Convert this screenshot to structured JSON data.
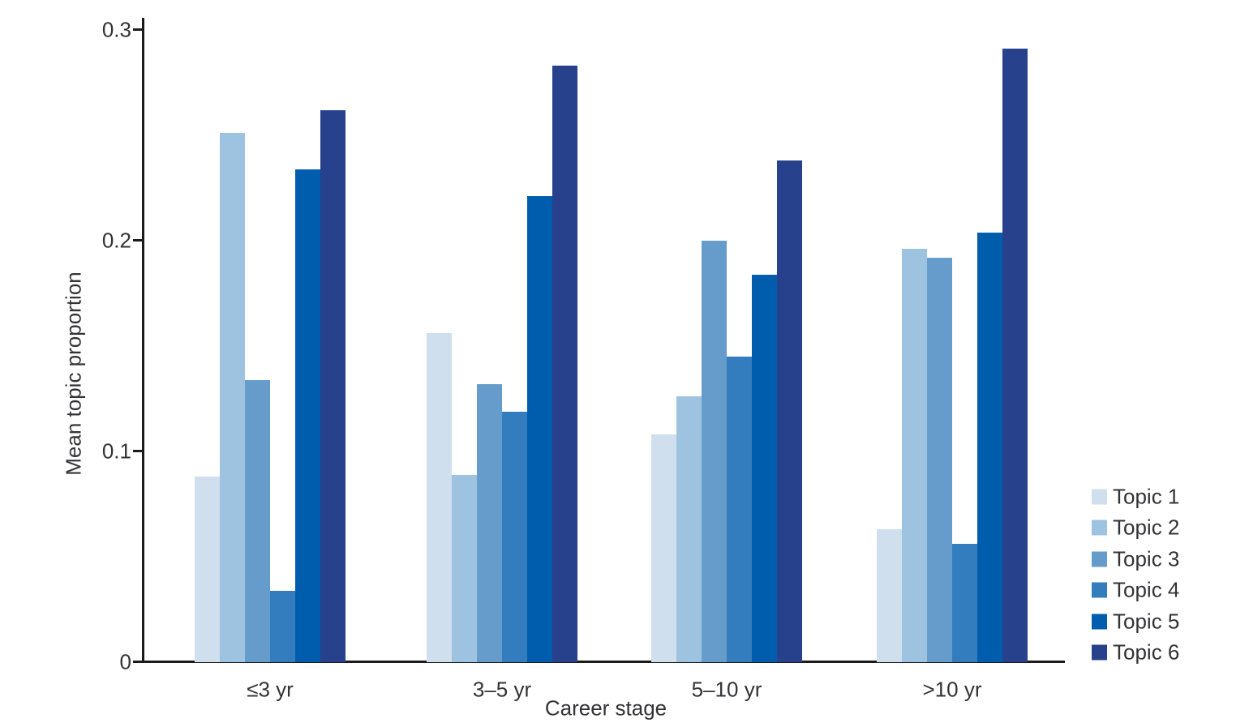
{
  "chart_data": {
    "type": "bar",
    "title": "",
    "xlabel": "Career stage",
    "ylabel": "Mean topic proportion",
    "categories": [
      "≤3 yr",
      "3–5 yr",
      "5–10 yr",
      ">10 yr"
    ],
    "series": [
      {
        "name": "Topic 1",
        "color": "#cfdfed",
        "values": [
          0.088,
          0.156,
          0.108,
          0.063
        ]
      },
      {
        "name": "Topic 2",
        "color": "#9ec3e0",
        "values": [
          0.251,
          0.089,
          0.126,
          0.196
        ]
      },
      {
        "name": "Topic 3",
        "color": "#669ccc",
        "values": [
          0.134,
          0.132,
          0.2,
          0.192
        ]
      },
      {
        "name": "Topic 4",
        "color": "#337dbf",
        "values": [
          0.034,
          0.119,
          0.145,
          0.056
        ]
      },
      {
        "name": "Topic 5",
        "color": "#005dad",
        "values": [
          0.234,
          0.221,
          0.184,
          0.204
        ]
      },
      {
        "name": "Topic 6",
        "color": "#27418d",
        "values": [
          0.262,
          0.283,
          0.238,
          0.291
        ]
      }
    ],
    "ylim": [
      0,
      0.3
    ],
    "yticks": [
      0,
      0.1,
      0.2,
      0.3
    ],
    "ytick_labels": [
      "0",
      "0.1",
      "0.2",
      "0.3"
    ],
    "legend_position": "right",
    "grid": false,
    "axis_color": "#1b1b1b",
    "text_color": "#333336",
    "background_color": "#ffffff"
  }
}
